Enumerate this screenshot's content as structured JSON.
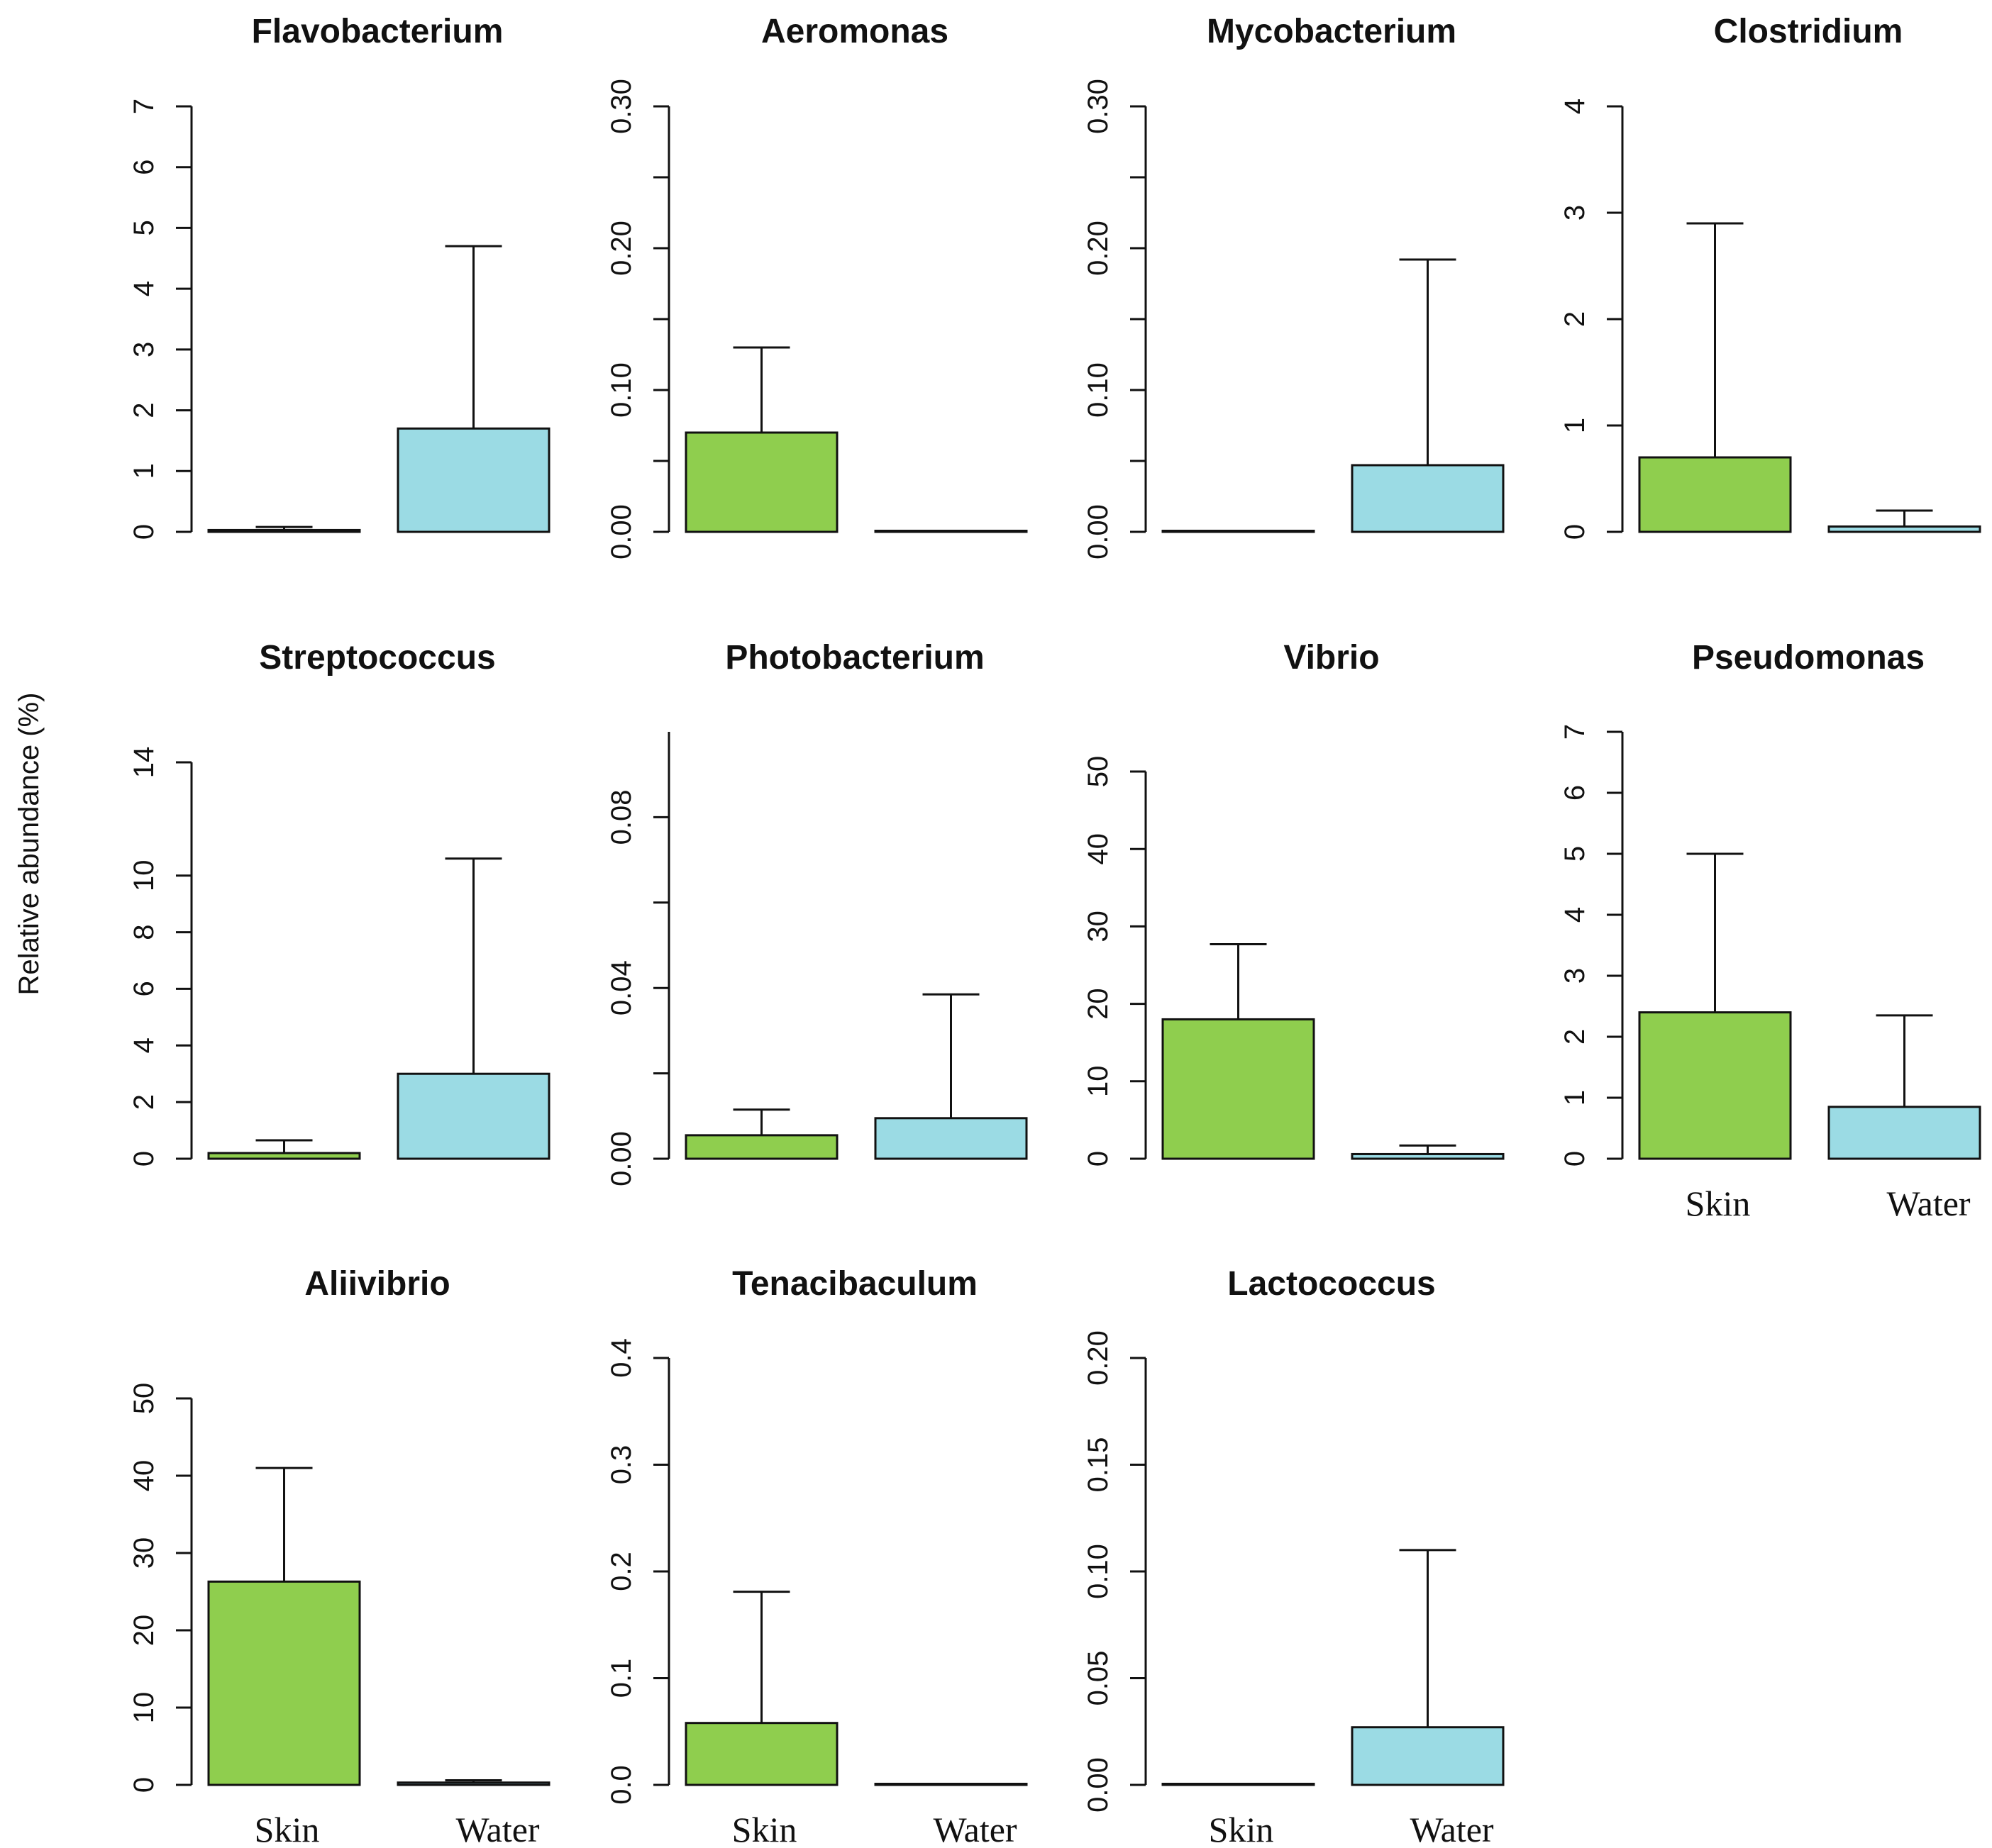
{
  "chart_data": {
    "type": "bar",
    "ylabel": "Relative abundance (%)",
    "categories": [
      "Skin",
      "Water"
    ],
    "colors": {
      "Skin": "#8fce4e",
      "Water": "#9bdbe4"
    },
    "panels": [
      {
        "title": "Flavobacterium",
        "yticks": [
          "0",
          "1",
          "2",
          "3",
          "4",
          "5",
          "6",
          "7"
        ],
        "ylim": [
          0,
          7
        ],
        "values": [
          0.03,
          1.7
        ],
        "errors": [
          0.08,
          4.7
        ]
      },
      {
        "title": "Aeromonas",
        "yticks": [
          "0.00",
          "0.10",
          "0.20",
          "0.30"
        ],
        "ylim": [
          0,
          0.3
        ],
        "values": [
          0.07,
          0.0
        ],
        "errors": [
          0.13,
          0.0
        ]
      },
      {
        "title": "Mycobacterium",
        "yticks": [
          "0.00",
          "0.10",
          "0.20",
          "0.30"
        ],
        "ylim": [
          0,
          0.3
        ],
        "values": [
          0.0,
          0.047
        ],
        "errors": [
          0.0,
          0.192
        ]
      },
      {
        "title": "Clostridium",
        "yticks": [
          "0",
          "1",
          "2",
          "3",
          "4"
        ],
        "ylim": [
          0,
          4
        ],
        "values": [
          0.7,
          0.05
        ],
        "errors": [
          2.9,
          0.2
        ]
      },
      {
        "title": "Streptococcus",
        "yticks": [
          "0",
          "2",
          "4",
          "6",
          "8",
          "10",
          "14"
        ],
        "ylim": [
          0,
          14
        ],
        "values": [
          0.2,
          3.0
        ],
        "errors": [
          0.65,
          10.6
        ]
      },
      {
        "title": "Photobacterium",
        "yticks": [
          "0.00",
          "0.04",
          "0.08"
        ],
        "ylim": [
          0,
          0.1
        ],
        "values": [
          0.0055,
          0.0095
        ],
        "errors": [
          0.0115,
          0.0385
        ]
      },
      {
        "title": "Vibrio",
        "yticks": [
          "0",
          "10",
          "20",
          "30",
          "40",
          "50"
        ],
        "ylim": [
          0,
          50
        ],
        "values": [
          18.0,
          0.6
        ],
        "errors": [
          27.7,
          1.7
        ]
      },
      {
        "title": "Pseudomonas",
        "yticks": [
          "0",
          "1",
          "2",
          "3",
          "4",
          "5",
          "6",
          "7"
        ],
        "ylim": [
          0,
          7
        ],
        "values": [
          2.4,
          0.85
        ],
        "errors": [
          5.0,
          2.35
        ],
        "xlabels": true
      },
      {
        "title": "Aliivibrio",
        "yticks": [
          "0",
          "10",
          "20",
          "30",
          "40",
          "50"
        ],
        "ylim": [
          0,
          50
        ],
        "values": [
          26.3,
          0.3
        ],
        "errors": [
          41.0,
          0.6
        ],
        "xlabels": true
      },
      {
        "title": "Tenacibaculum",
        "yticks": [
          "0.0",
          "0.1",
          "0.2",
          "0.3",
          "0.4"
        ],
        "ylim": [
          0,
          0.4
        ],
        "values": [
          0.058,
          0.0
        ],
        "errors": [
          0.181,
          0.0
        ],
        "xlabels": true
      },
      {
        "title": "Lactococcus",
        "yticks": [
          "0.00",
          "0.05",
          "0.10",
          "0.15",
          "0.20"
        ],
        "ylim": [
          0,
          0.2
        ],
        "values": [
          0.0,
          0.027
        ],
        "errors": [
          0.0,
          0.11
        ],
        "xlabels": true
      }
    ]
  }
}
